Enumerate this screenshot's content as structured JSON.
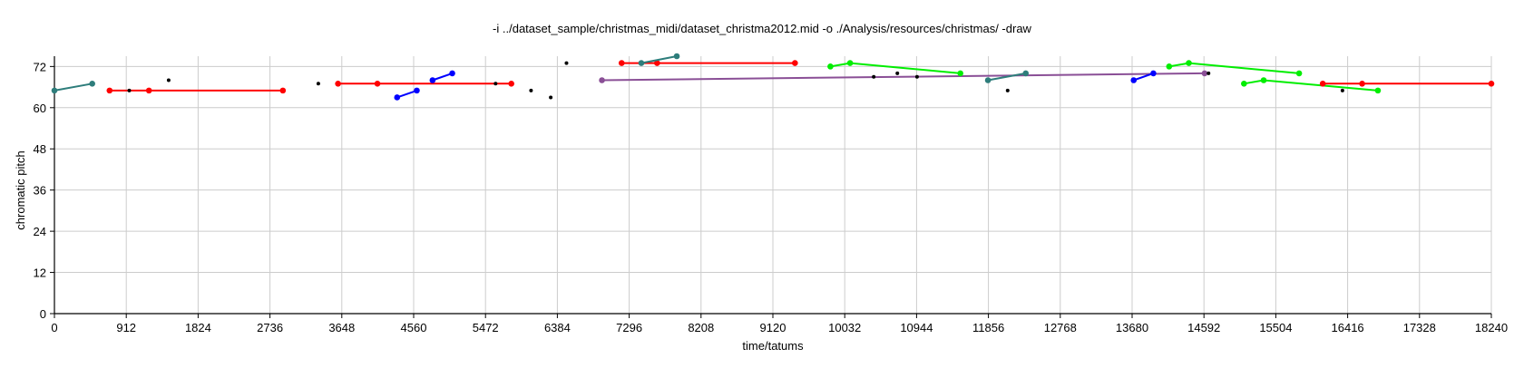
{
  "chart_data": {
    "type": "scatter",
    "title": "-i ../dataset_sample/christmas_midi/dataset_christma2012.mid -o ./Analysis/resources/christmas/ -draw",
    "xlabel": "time/tatums",
    "ylabel": "chromatic pitch",
    "xlim": [
      0,
      18240
    ],
    "ylim": [
      0,
      75
    ],
    "xticks": [
      0,
      912,
      1824,
      2736,
      3648,
      4560,
      5472,
      6384,
      7296,
      8208,
      9120,
      10032,
      10944,
      11856,
      12768,
      13680,
      14592,
      15504,
      16416,
      17328,
      18240
    ],
    "yticks": [
      0,
      12,
      24,
      36,
      48,
      60,
      72
    ],
    "grid": true,
    "legend": "none",
    "colors": {
      "teal": "#2e7d7b",
      "red": "#ff0000",
      "blue": "#0000ff",
      "green": "#00ee00",
      "purple": "#8a4f96",
      "black": "#000000",
      "grid": "#cccccc"
    },
    "segments": [
      {
        "color": "teal",
        "points": [
          [
            0,
            65
          ],
          [
            480,
            67
          ]
        ]
      },
      {
        "color": "red",
        "points": [
          [
            700,
            65
          ],
          [
            1200,
            65
          ],
          [
            2900,
            65
          ]
        ]
      },
      {
        "color": "red",
        "points": [
          [
            3600,
            67
          ],
          [
            4100,
            67
          ],
          [
            5800,
            67
          ]
        ]
      },
      {
        "color": "blue",
        "points": [
          [
            4350,
            63
          ],
          [
            4600,
            65
          ]
        ]
      },
      {
        "color": "blue",
        "points": [
          [
            4800,
            68
          ],
          [
            5050,
            70
          ]
        ]
      },
      {
        "color": "red",
        "points": [
          [
            7200,
            73
          ],
          [
            7650,
            73
          ],
          [
            9400,
            73
          ]
        ]
      },
      {
        "color": "teal",
        "points": [
          [
            7450,
            73
          ],
          [
            7900,
            75
          ]
        ]
      },
      {
        "color": "purple",
        "points": [
          [
            6950,
            68
          ],
          [
            14600,
            70
          ]
        ]
      },
      {
        "color": "green",
        "points": [
          [
            9850,
            72
          ],
          [
            10100,
            73
          ],
          [
            11500,
            70
          ]
        ]
      },
      {
        "color": "teal",
        "points": [
          [
            11850,
            68
          ],
          [
            12330,
            70
          ]
        ]
      },
      {
        "color": "blue",
        "points": [
          [
            13700,
            68
          ],
          [
            13950,
            70
          ]
        ]
      },
      {
        "color": "green",
        "points": [
          [
            14150,
            72
          ],
          [
            14400,
            73
          ],
          [
            15800,
            70
          ]
        ]
      },
      {
        "color": "green",
        "points": [
          [
            15100,
            67
          ],
          [
            15350,
            68
          ],
          [
            16800,
            65
          ]
        ]
      },
      {
        "color": "red",
        "points": [
          [
            16100,
            67
          ],
          [
            16600,
            67
          ],
          [
            18240,
            67
          ]
        ]
      }
    ],
    "isolated_points": [
      {
        "color": "black",
        "x": 950,
        "y": 65
      },
      {
        "color": "black",
        "x": 1450,
        "y": 68
      },
      {
        "color": "black",
        "x": 3350,
        "y": 67
      },
      {
        "color": "black",
        "x": 5600,
        "y": 67
      },
      {
        "color": "black",
        "x": 6050,
        "y": 65
      },
      {
        "color": "black",
        "x": 6300,
        "y": 63
      },
      {
        "color": "black",
        "x": 6500,
        "y": 73
      },
      {
        "color": "black",
        "x": 10400,
        "y": 69
      },
      {
        "color": "black",
        "x": 10700,
        "y": 70
      },
      {
        "color": "black",
        "x": 10950,
        "y": 69
      },
      {
        "color": "black",
        "x": 12100,
        "y": 65
      },
      {
        "color": "black",
        "x": 14650,
        "y": 70
      },
      {
        "color": "black",
        "x": 16350,
        "y": 65
      }
    ]
  }
}
